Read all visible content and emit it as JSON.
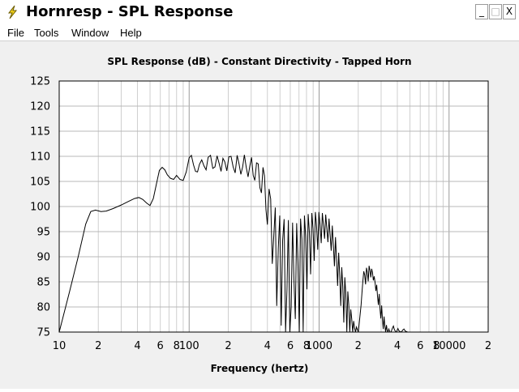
{
  "window": {
    "title": "Hornresp - SPL Response",
    "buttons": {
      "minimize": "_",
      "maximize": "□",
      "close": "X"
    }
  },
  "menu": {
    "items": [
      "File",
      "Tools",
      "Window",
      "Help"
    ]
  },
  "chart_data": {
    "type": "line",
    "title": "SPL Response (dB) - Constant Directivity - Tapped Horn",
    "xlabel": "Frequency (hertz)",
    "ylabel": "",
    "x_scale": "log",
    "xlim": [
      10,
      20000
    ],
    "ylim": [
      75,
      125
    ],
    "y_ticks": [
      75,
      80,
      85,
      90,
      95,
      100,
      105,
      110,
      115,
      120,
      125
    ],
    "x_tick_labels": [
      {
        "value": 10,
        "label": "10"
      },
      {
        "value": 20,
        "label": "2"
      },
      {
        "value": 40,
        "label": "4"
      },
      {
        "value": 60,
        "label": "6"
      },
      {
        "value": 80,
        "label": "8"
      },
      {
        "value": 100,
        "label": "100"
      },
      {
        "value": 200,
        "label": "2"
      },
      {
        "value": 400,
        "label": "4"
      },
      {
        "value": 600,
        "label": "6"
      },
      {
        "value": 800,
        "label": "8"
      },
      {
        "value": 1000,
        "label": "1000"
      },
      {
        "value": 2000,
        "label": "2"
      },
      {
        "value": 4000,
        "label": "4"
      },
      {
        "value": 6000,
        "label": "6"
      },
      {
        "value": 8000,
        "label": "8"
      },
      {
        "value": 10000,
        "label": "10000"
      },
      {
        "value": 20000,
        "label": "2"
      }
    ],
    "grid": true,
    "series": [
      {
        "color": "#000000",
        "x": [
          10,
          12,
          14,
          16,
          17.5,
          19,
          21,
          23,
          26,
          30,
          34,
          38,
          41,
          44,
          47,
          50,
          53,
          56,
          59,
          62,
          65,
          68,
          72,
          76,
          80,
          85,
          90,
          95,
          100,
          104,
          108,
          112,
          116,
          120,
          125,
          130,
          135,
          140,
          146,
          152,
          158,
          164,
          170,
          176,
          182,
          188,
          195,
          202,
          210,
          218,
          226,
          234,
          242,
          250,
          258,
          266,
          275,
          284,
          293,
          302,
          311,
          320,
          330,
          340,
          350,
          360,
          370,
          380,
          390,
          400,
          412,
          424,
          436,
          448,
          460,
          472,
          485,
          498,
          511,
          524,
          538,
          552,
          566,
          580,
          595,
          610,
          625,
          640,
          656,
          672,
          688,
          704,
          720,
          737,
          754,
          771,
          788,
          806,
          824,
          842,
          860,
          879,
          898,
          917,
          936,
          956,
          976,
          996,
          1017,
          1038,
          1059,
          1080,
          1102,
          1124,
          1146,
          1169,
          1192,
          1215,
          1239,
          1263,
          1287,
          1312,
          1337,
          1362,
          1388,
          1414,
          1440,
          1467,
          1494,
          1521,
          1549,
          1577,
          1605,
          1634,
          1663,
          1692,
          1722,
          1752,
          1782,
          1813,
          1844,
          1875,
          1907,
          1939,
          1971,
          2004,
          2037,
          2070,
          2104,
          2138,
          2172,
          2207,
          2242,
          2278,
          2314,
          2350,
          2387,
          2424,
          2461,
          2499,
          2537,
          2576,
          2615,
          2654,
          2694,
          2734,
          2775,
          2816,
          2858,
          2900,
          2942,
          2985,
          3028,
          3072,
          3116,
          3161,
          3206,
          3251,
          3297,
          3343,
          3390,
          3437,
          3485,
          3533,
          3582,
          3631,
          3681,
          3731,
          3782,
          3833,
          3885,
          3937,
          3990,
          4043,
          4100,
          4200,
          4300,
          4400,
          4500,
          4600,
          4800
        ],
        "y": [
          75,
          83,
          90,
          96.5,
          99,
          99.3,
          99,
          99.1,
          99.6,
          100.3,
          101,
          101.6,
          101.8,
          101.4,
          100.7,
          100.2,
          101.6,
          104.5,
          107.2,
          107.8,
          107.3,
          106.3,
          105.6,
          105.4,
          106.2,
          105.4,
          105.2,
          106.9,
          109.7,
          110.2,
          108.3,
          107,
          106.9,
          108.4,
          109.3,
          108.1,
          107.3,
          109.8,
          110.2,
          107.6,
          107.9,
          110.1,
          108.6,
          107,
          109.6,
          108.9,
          107.1,
          109.9,
          110,
          107.9,
          106.7,
          110.2,
          108.5,
          106.4,
          107.9,
          110.3,
          107.8,
          105.9,
          108.1,
          109.8,
          106.2,
          105.2,
          108.7,
          108.5,
          103.8,
          102.7,
          107.8,
          106.1,
          99.4,
          96.4,
          103.5,
          101.5,
          88.6,
          94.1,
          99.8,
          80.2,
          91.6,
          98.2,
          76.3,
          93.2,
          97.5,
          75,
          83.5,
          97.3,
          75,
          80.1,
          96.8,
          85.4,
          77.6,
          96.7,
          88.2,
          75,
          97.6,
          93.5,
          75,
          98.2,
          94.1,
          83.5,
          98.5,
          94.8,
          86.5,
          98.7,
          95.6,
          89.2,
          98.9,
          96.1,
          91.4,
          98.9,
          96.4,
          92.7,
          98.7,
          96.3,
          93.6,
          98.4,
          95.7,
          92.9,
          97.6,
          94.4,
          91.2,
          96.2,
          92.3,
          88.1,
          93.9,
          89.3,
          84.2,
          90.8,
          86.5,
          80.2,
          87.9,
          84.1,
          76.9,
          85.9,
          82.6,
          75,
          83.1,
          80.4,
          75,
          79.5,
          77.7,
          75,
          77.2,
          75.8,
          75,
          76,
          75.5,
          75,
          76.8,
          78.6,
          80.4,
          82.9,
          85.2,
          87.1,
          86.4,
          84.5,
          87.8,
          86.9,
          85.1,
          88.2,
          87.3,
          85.9,
          87.6,
          86.8,
          85.3,
          86.1,
          84.9,
          83.2,
          84.4,
          82.1,
          80.4,
          82.6,
          79.6,
          77.7,
          80.3,
          77.5,
          75.6,
          78.1,
          76.2,
          75,
          76.4,
          75.3,
          75,
          75.6,
          75.2,
          75,
          75,
          75.5,
          75.9,
          76.2,
          75.6,
          75.3,
          75.1,
          75,
          75.4,
          75.7,
          75.3,
          75.1,
          75,
          75.4,
          75.6,
          75.2,
          75
        ]
      }
    ]
  }
}
